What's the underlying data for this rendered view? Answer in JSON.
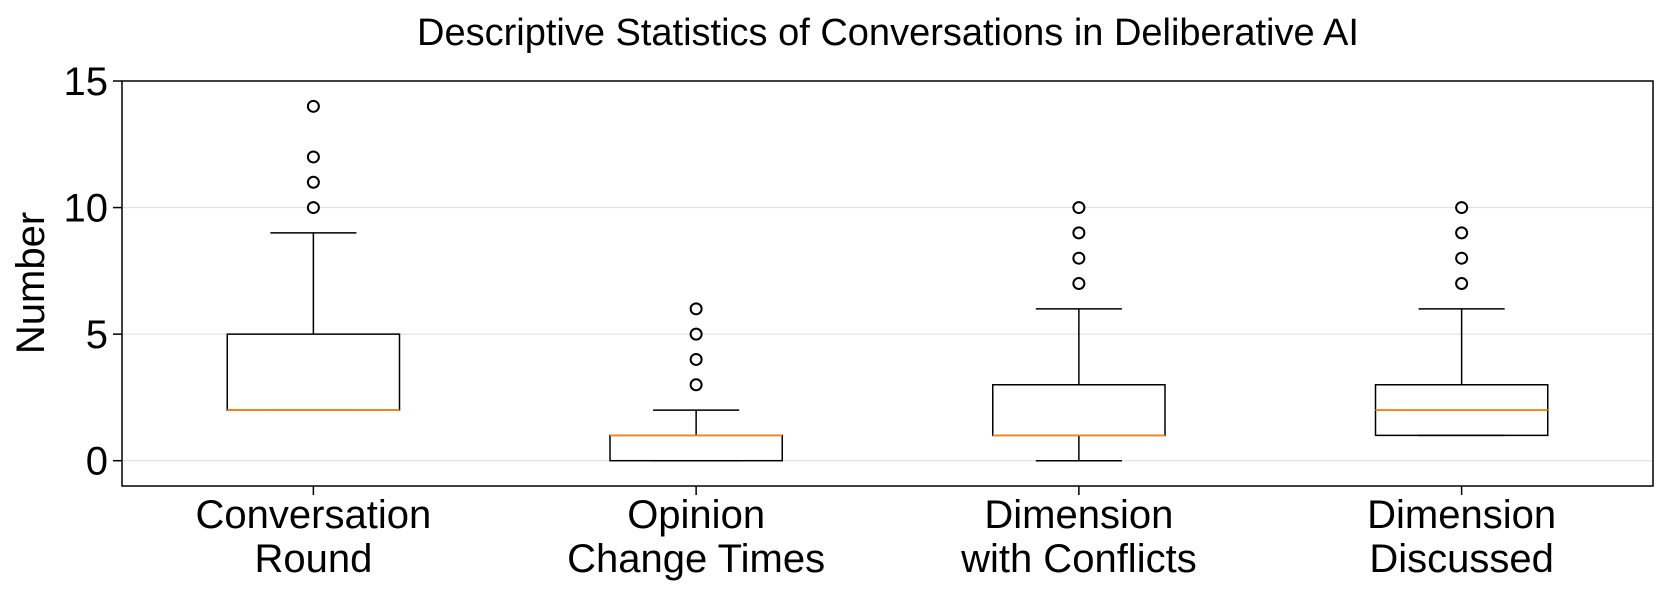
{
  "chart_data": {
    "type": "box",
    "title": "Descriptive Statistics of Conversations in Deliberative AI",
    "xlabel": "",
    "ylabel": "Number",
    "ylim": [
      -1,
      15
    ],
    "yticks": [
      0,
      5,
      10,
      15
    ],
    "grid": "y",
    "categories": [
      [
        "Conversation",
        "Round"
      ],
      [
        "Opinion",
        "Change Times"
      ],
      [
        "Dimension",
        "with Conflicts"
      ],
      [
        "Dimension",
        "Discussed"
      ]
    ],
    "boxes": [
      {
        "whisker_low": 2,
        "q1": 2,
        "median": 2,
        "q3": 5,
        "whisker_high": 9,
        "outliers": [
          10,
          11,
          12,
          14
        ]
      },
      {
        "whisker_low": 0,
        "q1": 0,
        "median": 1,
        "q3": 1,
        "whisker_high": 2,
        "outliers": [
          3,
          4,
          5,
          6
        ]
      },
      {
        "whisker_low": 0,
        "q1": 1,
        "median": 1,
        "q3": 3,
        "whisker_high": 6,
        "outliers": [
          7,
          8,
          9,
          10
        ]
      },
      {
        "whisker_low": 1,
        "q1": 1,
        "median": 2,
        "q3": 3,
        "whisker_high": 6,
        "outliers": [
          7,
          8,
          9,
          10
        ]
      }
    ],
    "colors": {
      "box": "#000000",
      "median": "#ff7f0e",
      "grid": "#dddddd",
      "outlier_fill": "#ffffff"
    }
  }
}
